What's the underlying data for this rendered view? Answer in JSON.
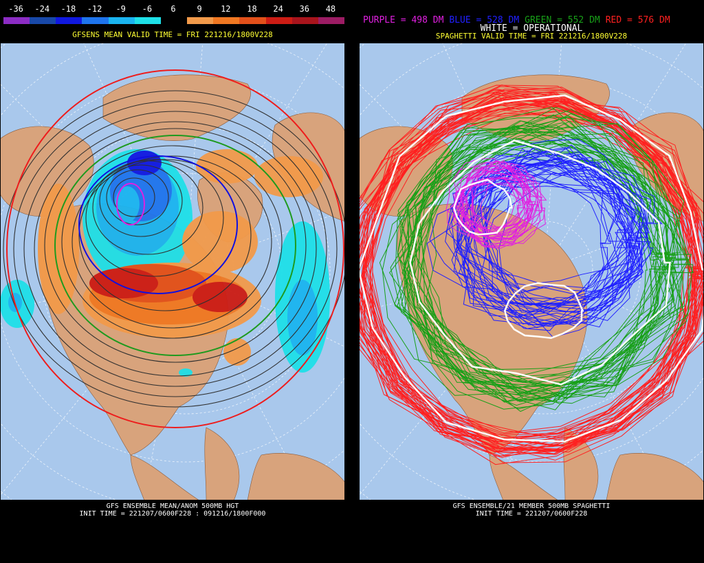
{
  "left": {
    "colorbar": {
      "labels": [
        "-36",
        "-24",
        "-18",
        "-12",
        "-9",
        "-6",
        "6",
        "9",
        "12",
        "18",
        "24",
        "36",
        "48"
      ],
      "colors": [
        "#8c2cc4",
        "#1848a8",
        "#1018e0",
        "#1e74ec",
        "#1ab4f0",
        "#1ee0e8",
        "#000000",
        "#f29a4a",
        "#f07822",
        "#e2501a",
        "#cc1c14",
        "#a8141c",
        "#9c1c64"
      ]
    },
    "title": "GFSENS MEAN VALID TIME = FRI 221216/1800V228",
    "footer_line1": "GFS ENSEMBLE MEAN/ANOM 500MB HGT",
    "footer_line2": "INIT TIME = 221207/0600F228 : 091216/1800F000"
  },
  "right": {
    "legend": [
      {
        "text": "PURPLE = 498 DM",
        "color": "#e020e0"
      },
      {
        "text": "BLUE = 528 DM",
        "color": "#2020ff"
      },
      {
        "text": "GREEN = 552 DM",
        "color": "#18a018"
      },
      {
        "text": "RED = 576 DM",
        "color": "#ff2020"
      }
    ],
    "operational": "WHITE = OPERATIONAL",
    "title": "SPAGHETTI VALID TIME = FRI 221216/1800V228",
    "footer_line1": "GFS ENSEMBLE/21 MEMBER 500MB SPAGHETTI",
    "footer_line2": "INIT TIME = 221207/0600F228"
  },
  "colors": {
    "ocean": "#a9c8ec",
    "land": "#d8a37c",
    "grid": "#ffffff",
    "title": "#ffff33"
  }
}
